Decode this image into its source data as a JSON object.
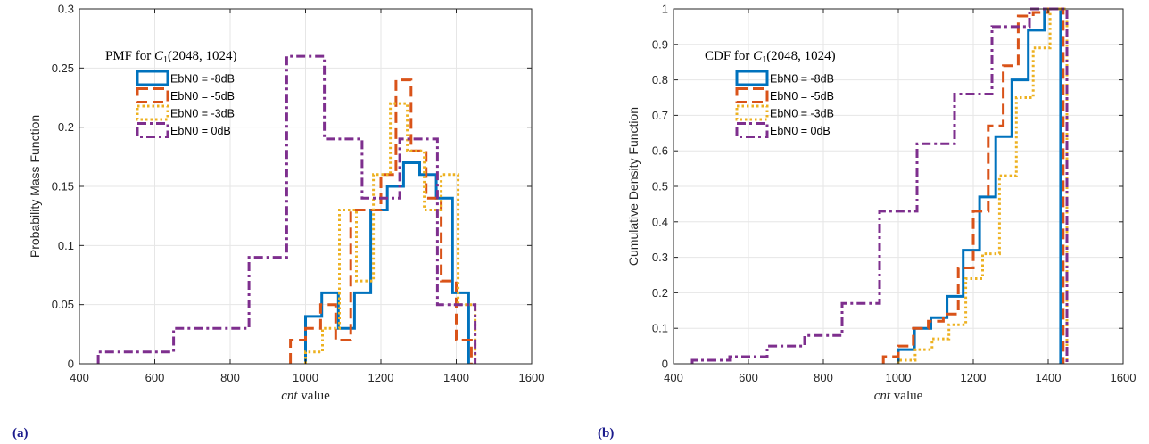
{
  "labels": {
    "panel_a": "(a)",
    "panel_b": "(b)"
  },
  "chart_data": [
    {
      "type": "line",
      "step": true,
      "title": "",
      "legend_title": "PMF for C1(2048, 1024)",
      "legend_title_parts": {
        "prefix": "PMF for ",
        "symbol": "C",
        "sub": "1",
        "args": "(2048, 1024)"
      },
      "xlabel": "cnt value",
      "xlabel_parts": {
        "italic": "cnt",
        "rest": " value"
      },
      "ylabel": "Probability Mass Function",
      "xlim": [
        400,
        1600
      ],
      "ylim": [
        0,
        0.3
      ],
      "xticks": [
        400,
        600,
        800,
        1000,
        1200,
        1400,
        1600
      ],
      "yticks": [
        0,
        0.05,
        0.1,
        0.15,
        0.2,
        0.25,
        0.3
      ],
      "ytick_labels": [
        "0",
        "0.05",
        "0.1",
        "0.15",
        "0.2",
        "0.25",
        "0.3"
      ],
      "grid": true,
      "legend_position": "top-left",
      "series": [
        {
          "name": "EbN0 = -8dB",
          "color": "#0072BD",
          "dash": "solid",
          "x": [
            1000,
            1000,
            1043,
            1043,
            1087,
            1087,
            1130,
            1130,
            1173,
            1173,
            1217,
            1217,
            1260,
            1260,
            1303,
            1303,
            1347,
            1347,
            1390,
            1390,
            1433,
            1433
          ],
          "y": [
            0,
            0.04,
            0.04,
            0.06,
            0.06,
            0.03,
            0.03,
            0.06,
            0.06,
            0.13,
            0.13,
            0.15,
            0.15,
            0.17,
            0.17,
            0.16,
            0.16,
            0.14,
            0.14,
            0.06,
            0.06,
            0
          ]
        },
        {
          "name": "EbN0 = -5dB",
          "color": "#D95319",
          "dash": "dashed",
          "x": [
            960,
            960,
            1000,
            1000,
            1040,
            1040,
            1080,
            1080,
            1120,
            1120,
            1160,
            1160,
            1200,
            1200,
            1240,
            1240,
            1280,
            1280,
            1320,
            1320,
            1360,
            1360,
            1400,
            1400,
            1440,
            1440
          ],
          "y": [
            0,
            0.02,
            0.02,
            0.03,
            0.03,
            0.05,
            0.05,
            0.02,
            0.02,
            0.13,
            0.13,
            0.13,
            0.13,
            0.16,
            0.16,
            0.24,
            0.24,
            0.18,
            0.18,
            0.14,
            0.14,
            0.07,
            0.07,
            0.02,
            0.02,
            0
          ]
        },
        {
          "name": "EbN0 = -3dB",
          "color": "#EDB120",
          "dash": "dotted",
          "x": [
            1000,
            1000,
            1045,
            1045,
            1090,
            1090,
            1135,
            1135,
            1180,
            1180,
            1225,
            1225,
            1270,
            1270,
            1315,
            1315,
            1360,
            1360,
            1405,
            1405,
            1450,
            1450
          ],
          "y": [
            0,
            0.01,
            0.01,
            0.03,
            0.03,
            0.13,
            0.13,
            0.07,
            0.07,
            0.16,
            0.16,
            0.22,
            0.22,
            0.18,
            0.18,
            0.13,
            0.13,
            0.16,
            0.16,
            0.05,
            0.05,
            0
          ]
        },
        {
          "name": "EbN0 =  0dB",
          "color": "#7E2F8E",
          "dash": "dashdot",
          "x": [
            450,
            450,
            650,
            650,
            850,
            850,
            950,
            950,
            1050,
            1050,
            1150,
            1150,
            1250,
            1250,
            1350,
            1350,
            1450,
            1450
          ],
          "y": [
            0,
            0.01,
            0.01,
            0.03,
            0.03,
            0.09,
            0.09,
            0.26,
            0.26,
            0.19,
            0.19,
            0.14,
            0.14,
            0.19,
            0.19,
            0.05,
            0.05,
            0
          ]
        }
      ]
    },
    {
      "type": "line",
      "step": true,
      "title": "",
      "legend_title": "CDF for C1(2048, 1024)",
      "legend_title_parts": {
        "prefix": "CDF for ",
        "symbol": "C",
        "sub": "1",
        "args": "(2048, 1024)"
      },
      "xlabel": "cnt value",
      "xlabel_parts": {
        "italic": "cnt",
        "rest": " value"
      },
      "ylabel": "Cumulative Density Function",
      "xlim": [
        400,
        1600
      ],
      "ylim": [
        0,
        1
      ],
      "xticks": [
        400,
        600,
        800,
        1000,
        1200,
        1400,
        1600
      ],
      "yticks": [
        0,
        0.1,
        0.2,
        0.3,
        0.4,
        0.5,
        0.6,
        0.7,
        0.8,
        0.9,
        1
      ],
      "ytick_labels": [
        "0",
        "0.1",
        "0.2",
        "0.3",
        "0.4",
        "0.5",
        "0.6",
        "0.7",
        "0.8",
        "0.9",
        "1"
      ],
      "grid": true,
      "legend_position": "top-left",
      "series": [
        {
          "name": "EbN0 = -8dB",
          "color": "#0072BD",
          "dash": "solid",
          "x": [
            1000,
            1000,
            1043,
            1043,
            1087,
            1087,
            1130,
            1130,
            1173,
            1173,
            1217,
            1217,
            1260,
            1260,
            1303,
            1303,
            1347,
            1347,
            1390,
            1390,
            1433,
            1433
          ],
          "y": [
            0,
            0.04,
            0.04,
            0.1,
            0.1,
            0.13,
            0.13,
            0.19,
            0.19,
            0.32,
            0.32,
            0.47,
            0.47,
            0.64,
            0.64,
            0.8,
            0.8,
            0.94,
            0.94,
            1.0,
            1.0,
            0
          ]
        },
        {
          "name": "EbN0 = -5dB",
          "color": "#D95319",
          "dash": "dashed",
          "x": [
            960,
            960,
            1000,
            1000,
            1040,
            1040,
            1080,
            1080,
            1120,
            1120,
            1160,
            1160,
            1200,
            1200,
            1240,
            1240,
            1280,
            1280,
            1320,
            1320,
            1360,
            1360,
            1400,
            1400,
            1440,
            1440
          ],
          "y": [
            0,
            0.02,
            0.02,
            0.05,
            0.05,
            0.1,
            0.1,
            0.12,
            0.12,
            0.14,
            0.14,
            0.27,
            0.27,
            0.43,
            0.43,
            0.67,
            0.67,
            0.84,
            0.84,
            0.98,
            0.98,
            0.99,
            0.99,
            1.0,
            1.0,
            0
          ]
        },
        {
          "name": "EbN0 = -3dB",
          "color": "#EDB120",
          "dash": "dotted",
          "x": [
            1000,
            1000,
            1045,
            1045,
            1090,
            1090,
            1135,
            1135,
            1180,
            1180,
            1225,
            1225,
            1270,
            1270,
            1315,
            1315,
            1360,
            1360,
            1405,
            1405,
            1450,
            1450
          ],
          "y": [
            0,
            0.01,
            0.01,
            0.04,
            0.04,
            0.07,
            0.07,
            0.11,
            0.11,
            0.24,
            0.24,
            0.31,
            0.31,
            0.53,
            0.53,
            0.75,
            0.75,
            0.89,
            0.89,
            1.0,
            1.0,
            0
          ]
        },
        {
          "name": "EbN0 =  0dB",
          "color": "#7E2F8E",
          "dash": "dashdot",
          "x": [
            450,
            450,
            550,
            550,
            650,
            650,
            750,
            750,
            850,
            850,
            950,
            950,
            1050,
            1050,
            1150,
            1150,
            1250,
            1250,
            1350,
            1350,
            1450,
            1450
          ],
          "y": [
            0,
            0.01,
            0.01,
            0.02,
            0.02,
            0.05,
            0.05,
            0.08,
            0.08,
            0.17,
            0.17,
            0.43,
            0.43,
            0.62,
            0.62,
            0.76,
            0.76,
            0.95,
            0.95,
            1.0,
            1.0,
            0
          ]
        }
      ]
    }
  ]
}
